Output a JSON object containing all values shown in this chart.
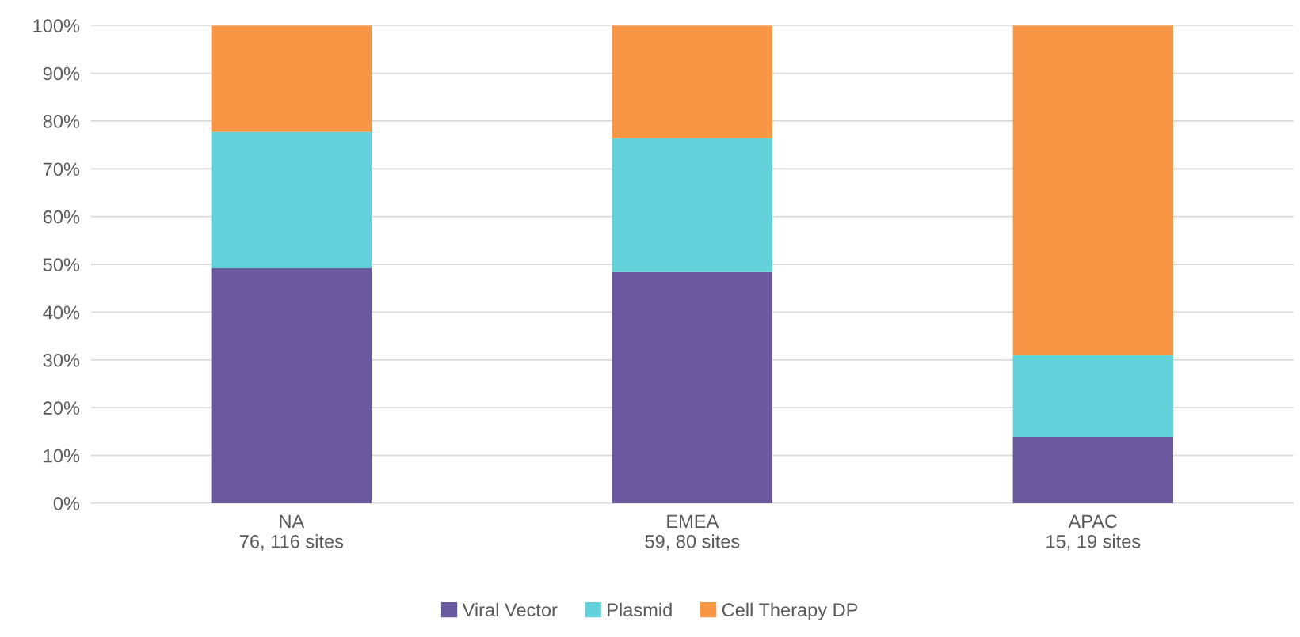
{
  "chart_data": {
    "type": "bar",
    "stacked": true,
    "categories": [
      "NA\n76, 116 sites",
      "EMEA\n59, 80 sites",
      "APAC\n15, 19 sites"
    ],
    "series": [
      {
        "name": "Viral Vector",
        "color": "#6a589e",
        "values": [
          49.2,
          48.4,
          13.9
        ]
      },
      {
        "name": "Plasmid",
        "color": "#63d1da",
        "values": [
          28.5,
          28.0,
          17.1
        ]
      },
      {
        "name": "Cell Therapy DP",
        "color": "#f99645",
        "values": [
          22.3,
          23.6,
          69.0
        ]
      }
    ],
    "ylim": [
      0,
      100
    ],
    "yticks": [
      {
        "value": 0,
        "label": "0%"
      },
      {
        "value": 10,
        "label": "10%"
      },
      {
        "value": 20,
        "label": "20%"
      },
      {
        "value": 30,
        "label": "30%"
      },
      {
        "value": 40,
        "label": "40%"
      },
      {
        "value": 50,
        "label": "50%"
      },
      {
        "value": 60,
        "label": "60%"
      },
      {
        "value": 70,
        "label": "70%"
      },
      {
        "value": 80,
        "label": "80%"
      },
      {
        "value": 90,
        "label": "90%"
      },
      {
        "value": 100,
        "label": "100%"
      }
    ],
    "grid": "y",
    "legend": "bottom"
  }
}
